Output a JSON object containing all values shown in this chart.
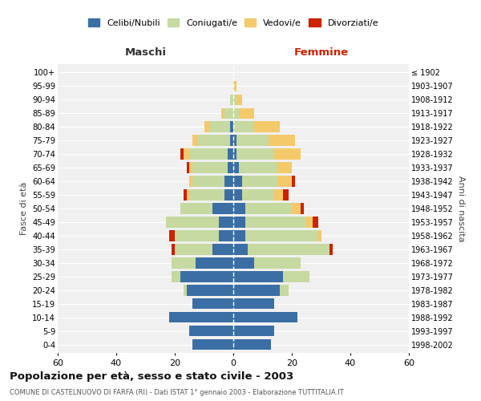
{
  "age_groups": [
    "0-4",
    "5-9",
    "10-14",
    "15-19",
    "20-24",
    "25-29",
    "30-34",
    "35-39",
    "40-44",
    "45-49",
    "50-54",
    "55-59",
    "60-64",
    "65-69",
    "70-74",
    "75-79",
    "80-84",
    "85-89",
    "90-94",
    "95-99",
    "100+"
  ],
  "birth_years": [
    "1998-2002",
    "1993-1997",
    "1988-1992",
    "1983-1987",
    "1978-1982",
    "1973-1977",
    "1968-1972",
    "1963-1967",
    "1958-1962",
    "1953-1957",
    "1948-1952",
    "1943-1947",
    "1938-1942",
    "1933-1937",
    "1928-1932",
    "1923-1927",
    "1918-1922",
    "1913-1917",
    "1908-1912",
    "1903-1907",
    "≤ 1902"
  ],
  "colors": {
    "celibe": "#3A6EA5",
    "coniugato": "#C5D9A0",
    "vedovo": "#F4C96A",
    "divorziato": "#CC2200"
  },
  "maschi": {
    "celibe": [
      14,
      15,
      22,
      14,
      16,
      18,
      13,
      7,
      5,
      5,
      7,
      3,
      3,
      2,
      2,
      1,
      1,
      0,
      0,
      0,
      0
    ],
    "coniugato": [
      0,
      0,
      0,
      0,
      1,
      3,
      8,
      13,
      15,
      18,
      11,
      12,
      11,
      12,
      13,
      11,
      7,
      3,
      1,
      0,
      0
    ],
    "vedovo": [
      0,
      0,
      0,
      0,
      0,
      0,
      0,
      0,
      0,
      0,
      0,
      1,
      1,
      1,
      2,
      2,
      2,
      1,
      0,
      0,
      0
    ],
    "divorziato": [
      0,
      0,
      0,
      0,
      0,
      0,
      0,
      1,
      2,
      0,
      0,
      1,
      0,
      1,
      1,
      0,
      0,
      0,
      0,
      0,
      0
    ]
  },
  "femmine": {
    "nubile": [
      13,
      14,
      22,
      14,
      16,
      17,
      7,
      5,
      4,
      4,
      4,
      3,
      3,
      2,
      1,
      1,
      0,
      0,
      0,
      0,
      0
    ],
    "coniugata": [
      0,
      0,
      0,
      0,
      3,
      9,
      16,
      28,
      25,
      21,
      16,
      11,
      12,
      13,
      13,
      11,
      7,
      2,
      1,
      0,
      0
    ],
    "vedova": [
      0,
      0,
      0,
      0,
      0,
      0,
      0,
      0,
      1,
      2,
      3,
      3,
      5,
      5,
      9,
      9,
      9,
      5,
      2,
      1,
      0
    ],
    "divorziata": [
      0,
      0,
      0,
      0,
      0,
      0,
      0,
      1,
      0,
      2,
      1,
      2,
      1,
      0,
      0,
      0,
      0,
      0,
      0,
      0,
      0
    ]
  },
  "title": "Popolazione per età, sesso e stato civile - 2003",
  "subtitle": "COMUNE DI CASTELNUOVO DI FARFA (RI) - Dati ISTAT 1° gennaio 2003 - Elaborazione TUTTITALIA.IT",
  "xlabel_left": "Maschi",
  "xlabel_right": "Femmine",
  "ylabel_left": "Fasce di età",
  "ylabel_right": "Anni di nascita",
  "xlim": 60,
  "legend_labels": [
    "Celibi/Nubili",
    "Coniugati/e",
    "Vedovi/e",
    "Divorziati/e"
  ],
  "background_color": "#FFFFFF",
  "grid_color": "#CCCCCC"
}
